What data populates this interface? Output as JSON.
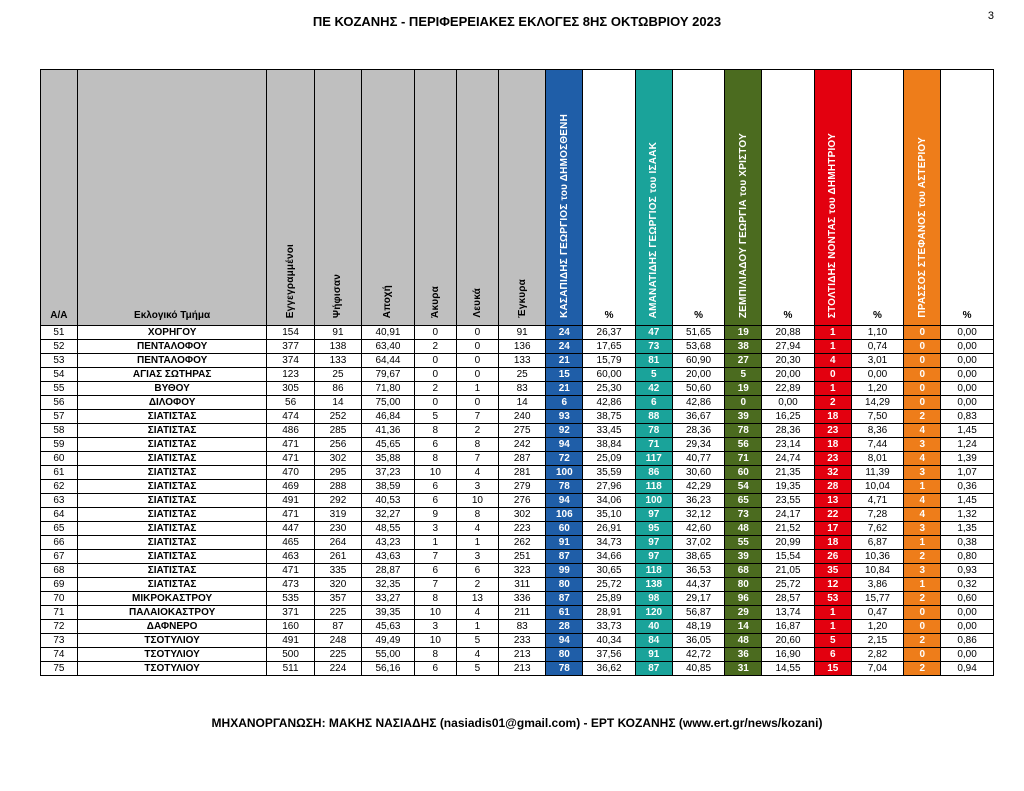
{
  "title": "ΠΕ ΚΟΖΑΝΗΣ - ΠΕΡΙΦΕΡΕΙΑΚΕΣ ΕΚΛΟΓΕΣ 8ΗΣ ΟΚΤΩΒΡΙΟΥ 2023",
  "page_number": "3",
  "footer": "ΜΗΧΑΝΟΡΓΑΝΩΣΗ: ΜΑΚΗΣ ΝΑΣΙΑΔΗΣ (nasiadis01@gmail.com) - ΕΡΤ ΚΟΖΑΝΗΣ (www.ert.gr/news/kozani)",
  "grey_bg": "#bfbfbf",
  "candidates": [
    {
      "label": "ΚΑΣΑΠΙΔΗΣ ΓΕΩΡΓΙΟΣ του ΔΗΜΟΣΘΕΝΗ",
      "color": "#1f5ea8"
    },
    {
      "label": "ΑΜΑΝΑΤΙΔΗΣ ΓΕΩΡΓΙΟΣ του ΙΣΑΑΚ",
      "color": "#1aa39a"
    },
    {
      "label": "ΖΕΜΠΙΛΙΑΔΟΥ ΓΕΩΡΓΙΑ του ΧΡΙΣΤΟΥ",
      "color": "#4b6b1f"
    },
    {
      "label": "ΣΤΟΛΤΙΔΗΣ ΝΟΝΤΑΣ του ΔΗΜΗΤΡΙΟΥ",
      "color": "#e3000f"
    },
    {
      "label": "ΠΡΑΣΣΟΣ ΣΤΕΦΑΝΟΣ του ΑΣΤΕΡΙΟΥ",
      "color": "#ee7d1a"
    }
  ],
  "fixed_headers": {
    "aa": "Α/Α",
    "name": "Εκλογικό Τμήμα",
    "reg": "Εγγεγραμμένοι",
    "voted": "Ψήφισαν",
    "abst": "Αποχή",
    "blank": "Άκυρα",
    "white": "Λευκά",
    "valid": "Έγκυρα",
    "pct": "%"
  },
  "rows": [
    {
      "aa": 51,
      "name": "ΧΟΡΗΓΟΥ",
      "reg": 154,
      "voted": 91,
      "abst": "40,91",
      "blank": 0,
      "white": 0,
      "valid": 91,
      "v": [
        24,
        47,
        19,
        1,
        0
      ],
      "p": [
        "26,37",
        "51,65",
        "20,88",
        "1,10",
        "0,00"
      ]
    },
    {
      "aa": 52,
      "name": "ΠΕΝΤΑΛΟΦΟΥ",
      "reg": 377,
      "voted": 138,
      "abst": "63,40",
      "blank": 2,
      "white": 0,
      "valid": 136,
      "v": [
        24,
        73,
        38,
        1,
        0
      ],
      "p": [
        "17,65",
        "53,68",
        "27,94",
        "0,74",
        "0,00"
      ]
    },
    {
      "aa": 53,
      "name": "ΠΕΝΤΑΛΟΦΟΥ",
      "reg": 374,
      "voted": 133,
      "abst": "64,44",
      "blank": 0,
      "white": 0,
      "valid": 133,
      "v": [
        21,
        81,
        27,
        4,
        0
      ],
      "p": [
        "15,79",
        "60,90",
        "20,30",
        "3,01",
        "0,00"
      ]
    },
    {
      "aa": 54,
      "name": "ΑΓΙΑΣ ΣΩΤΗΡΑΣ",
      "reg": 123,
      "voted": 25,
      "abst": "79,67",
      "blank": 0,
      "white": 0,
      "valid": 25,
      "v": [
        15,
        5,
        5,
        0,
        0
      ],
      "p": [
        "60,00",
        "20,00",
        "20,00",
        "0,00",
        "0,00"
      ]
    },
    {
      "aa": 55,
      "name": "ΒΥΘΟΥ",
      "reg": 305,
      "voted": 86,
      "abst": "71,80",
      "blank": 2,
      "white": 1,
      "valid": 83,
      "v": [
        21,
        42,
        19,
        1,
        0
      ],
      "p": [
        "25,30",
        "50,60",
        "22,89",
        "1,20",
        "0,00"
      ]
    },
    {
      "aa": 56,
      "name": "ΔΙΛΟΦΟΥ",
      "reg": 56,
      "voted": 14,
      "abst": "75,00",
      "blank": 0,
      "white": 0,
      "valid": 14,
      "v": [
        6,
        6,
        0,
        2,
        0
      ],
      "p": [
        "42,86",
        "42,86",
        "0,00",
        "14,29",
        "0,00"
      ]
    },
    {
      "aa": 57,
      "name": "ΣΙΑΤΙΣΤΑΣ",
      "reg": 474,
      "voted": 252,
      "abst": "46,84",
      "blank": 5,
      "white": 7,
      "valid": 240,
      "v": [
        93,
        88,
        39,
        18,
        2
      ],
      "p": [
        "38,75",
        "36,67",
        "16,25",
        "7,50",
        "0,83"
      ]
    },
    {
      "aa": 58,
      "name": "ΣΙΑΤΙΣΤΑΣ",
      "reg": 486,
      "voted": 285,
      "abst": "41,36",
      "blank": 8,
      "white": 2,
      "valid": 275,
      "v": [
        92,
        78,
        78,
        23,
        4
      ],
      "p": [
        "33,45",
        "28,36",
        "28,36",
        "8,36",
        "1,45"
      ]
    },
    {
      "aa": 59,
      "name": "ΣΙΑΤΙΣΤΑΣ",
      "reg": 471,
      "voted": 256,
      "abst": "45,65",
      "blank": 6,
      "white": 8,
      "valid": 242,
      "v": [
        94,
        71,
        56,
        18,
        3
      ],
      "p": [
        "38,84",
        "29,34",
        "23,14",
        "7,44",
        "1,24"
      ]
    },
    {
      "aa": 60,
      "name": "ΣΙΑΤΙΣΤΑΣ",
      "reg": 471,
      "voted": 302,
      "abst": "35,88",
      "blank": 8,
      "white": 7,
      "valid": 287,
      "v": [
        72,
        117,
        71,
        23,
        4
      ],
      "p": [
        "25,09",
        "40,77",
        "24,74",
        "8,01",
        "1,39"
      ]
    },
    {
      "aa": 61,
      "name": "ΣΙΑΤΙΣΤΑΣ",
      "reg": 470,
      "voted": 295,
      "abst": "37,23",
      "blank": 10,
      "white": 4,
      "valid": 281,
      "v": [
        100,
        86,
        60,
        32,
        3
      ],
      "p": [
        "35,59",
        "30,60",
        "21,35",
        "11,39",
        "1,07"
      ]
    },
    {
      "aa": 62,
      "name": "ΣΙΑΤΙΣΤΑΣ",
      "reg": 469,
      "voted": 288,
      "abst": "38,59",
      "blank": 6,
      "white": 3,
      "valid": 279,
      "v": [
        78,
        118,
        54,
        28,
        1
      ],
      "p": [
        "27,96",
        "42,29",
        "19,35",
        "10,04",
        "0,36"
      ]
    },
    {
      "aa": 63,
      "name": "ΣΙΑΤΙΣΤΑΣ",
      "reg": 491,
      "voted": 292,
      "abst": "40,53",
      "blank": 6,
      "white": 10,
      "valid": 276,
      "v": [
        94,
        100,
        65,
        13,
        4
      ],
      "p": [
        "34,06",
        "36,23",
        "23,55",
        "4,71",
        "1,45"
      ]
    },
    {
      "aa": 64,
      "name": "ΣΙΑΤΙΣΤΑΣ",
      "reg": 471,
      "voted": 319,
      "abst": "32,27",
      "blank": 9,
      "white": 8,
      "valid": 302,
      "v": [
        106,
        97,
        73,
        22,
        4
      ],
      "p": [
        "35,10",
        "32,12",
        "24,17",
        "7,28",
        "1,32"
      ]
    },
    {
      "aa": 65,
      "name": "ΣΙΑΤΙΣΤΑΣ",
      "reg": 447,
      "voted": 230,
      "abst": "48,55",
      "blank": 3,
      "white": 4,
      "valid": 223,
      "v": [
        60,
        95,
        48,
        17,
        3
      ],
      "p": [
        "26,91",
        "42,60",
        "21,52",
        "7,62",
        "1,35"
      ]
    },
    {
      "aa": 66,
      "name": "ΣΙΑΤΙΣΤΑΣ",
      "reg": 465,
      "voted": 264,
      "abst": "43,23",
      "blank": 1,
      "white": 1,
      "valid": 262,
      "v": [
        91,
        97,
        55,
        18,
        1
      ],
      "p": [
        "34,73",
        "37,02",
        "20,99",
        "6,87",
        "0,38"
      ]
    },
    {
      "aa": 67,
      "name": "ΣΙΑΤΙΣΤΑΣ",
      "reg": 463,
      "voted": 261,
      "abst": "43,63",
      "blank": 7,
      "white": 3,
      "valid": 251,
      "v": [
        87,
        97,
        39,
        26,
        2
      ],
      "p": [
        "34,66",
        "38,65",
        "15,54",
        "10,36",
        "0,80"
      ]
    },
    {
      "aa": 68,
      "name": "ΣΙΑΤΙΣΤΑΣ",
      "reg": 471,
      "voted": 335,
      "abst": "28,87",
      "blank": 6,
      "white": 6,
      "valid": 323,
      "v": [
        99,
        118,
        68,
        35,
        3
      ],
      "p": [
        "30,65",
        "36,53",
        "21,05",
        "10,84",
        "0,93"
      ]
    },
    {
      "aa": 69,
      "name": "ΣΙΑΤΙΣΤΑΣ",
      "reg": 473,
      "voted": 320,
      "abst": "32,35",
      "blank": 7,
      "white": 2,
      "valid": 311,
      "v": [
        80,
        138,
        80,
        12,
        1
      ],
      "p": [
        "25,72",
        "44,37",
        "25,72",
        "3,86",
        "0,32"
      ]
    },
    {
      "aa": 70,
      "name": "ΜΙΚΡΟΚΑΣΤΡΟΥ",
      "reg": 535,
      "voted": 357,
      "abst": "33,27",
      "blank": 8,
      "white": 13,
      "valid": 336,
      "v": [
        87,
        98,
        96,
        53,
        2
      ],
      "p": [
        "25,89",
        "29,17",
        "28,57",
        "15,77",
        "0,60"
      ]
    },
    {
      "aa": 71,
      "name": "ΠΑΛΑΙΟΚΑΣΤΡΟΥ",
      "reg": 371,
      "voted": 225,
      "abst": "39,35",
      "blank": 10,
      "white": 4,
      "valid": 211,
      "v": [
        61,
        120,
        29,
        1,
        0
      ],
      "p": [
        "28,91",
        "56,87",
        "13,74",
        "0,47",
        "0,00"
      ]
    },
    {
      "aa": 72,
      "name": "ΔΑΦΝΕΡΟ",
      "reg": 160,
      "voted": 87,
      "abst": "45,63",
      "blank": 3,
      "white": 1,
      "valid": 83,
      "v": [
        28,
        40,
        14,
        1,
        0
      ],
      "p": [
        "33,73",
        "48,19",
        "16,87",
        "1,20",
        "0,00"
      ]
    },
    {
      "aa": 73,
      "name": "ΤΣΟΤΥΛΙΟΥ",
      "reg": 491,
      "voted": 248,
      "abst": "49,49",
      "blank": 10,
      "white": 5,
      "valid": 233,
      "v": [
        94,
        84,
        48,
        5,
        2
      ],
      "p": [
        "40,34",
        "36,05",
        "20,60",
        "2,15",
        "0,86"
      ]
    },
    {
      "aa": 74,
      "name": "ΤΣΟΤΥΛΙΟΥ",
      "reg": 500,
      "voted": 225,
      "abst": "55,00",
      "blank": 8,
      "white": 4,
      "valid": 213,
      "v": [
        80,
        91,
        36,
        6,
        0
      ],
      "p": [
        "37,56",
        "42,72",
        "16,90",
        "2,82",
        "0,00"
      ]
    },
    {
      "aa": 75,
      "name": "ΤΣΟΤΥΛΙΟΥ",
      "reg": 511,
      "voted": 224,
      "abst": "56,16",
      "blank": 6,
      "white": 5,
      "valid": 213,
      "v": [
        78,
        87,
        31,
        15,
        2
      ],
      "p": [
        "36,62",
        "40,85",
        "14,55",
        "7,04",
        "0,94"
      ]
    }
  ]
}
